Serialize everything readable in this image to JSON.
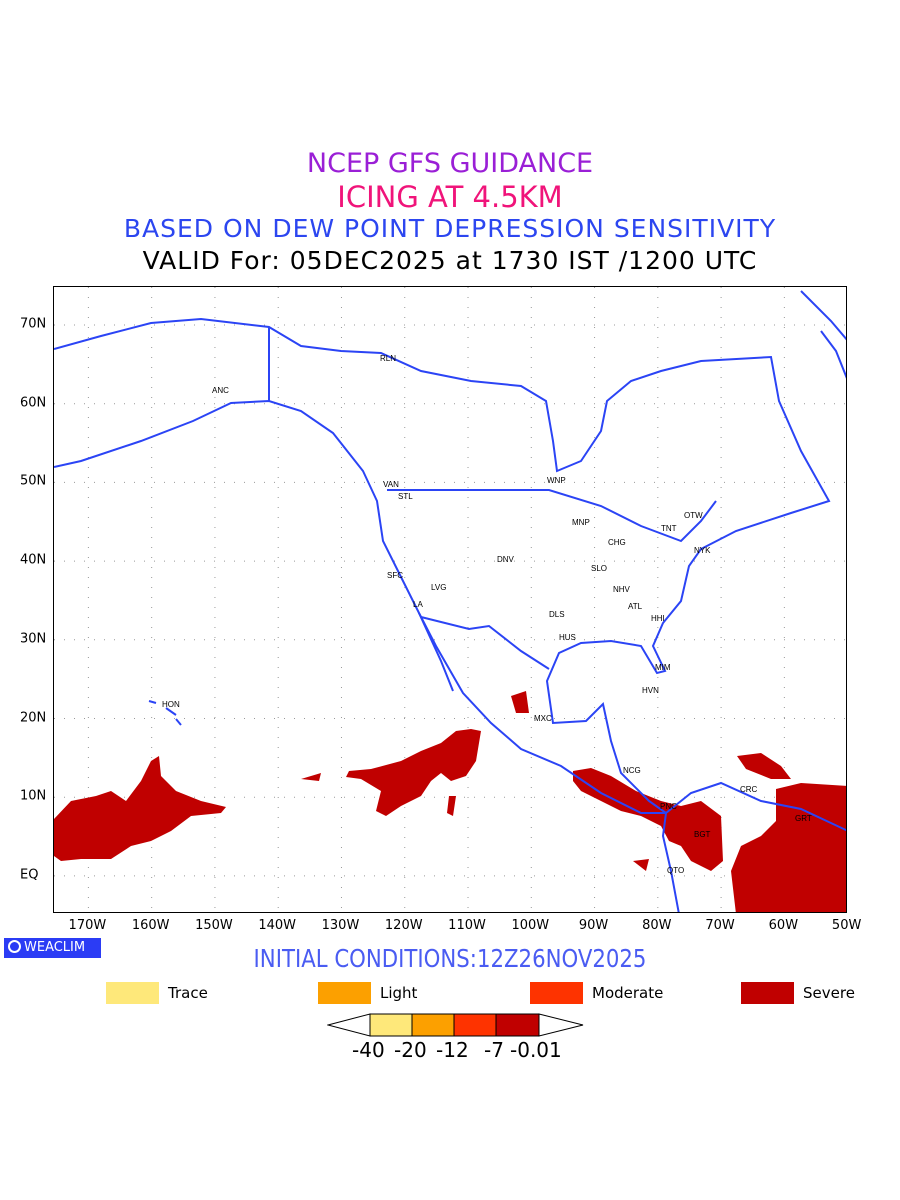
{
  "titles": {
    "line1": "NCEP GFS GUIDANCE",
    "line2": "ICING AT 4.5KM",
    "line3": "BASED ON DEW POINT DEPRESSION SENSITIVITY",
    "line4": "VALID For: 05DEC2025 at 1730 IST /1200 UTC"
  },
  "axes": {
    "x_labels": [
      "170W",
      "160W",
      "150W",
      "140W",
      "130W",
      "120W",
      "110W",
      "100W",
      "90W",
      "80W",
      "70W",
      "60W",
      "50W"
    ],
    "y_labels": [
      "70N",
      "60N",
      "50N",
      "40N",
      "30N",
      "20N",
      "10N",
      "EQ"
    ]
  },
  "cities": [
    "RLN",
    "ANC",
    "VAN",
    "STL",
    "WNP",
    "MNP",
    "OTW",
    "TNT",
    "CHG",
    "NYK",
    "DNV",
    "SFC",
    "SLO",
    "LVG",
    "NHV",
    "LA",
    "ATL",
    "DLS",
    "HHI",
    "HUS",
    "MIM",
    "HVN",
    "HON",
    "MXC",
    "NCG",
    "CRC",
    "PNC",
    "GRT",
    "BGT",
    "QTO"
  ],
  "logo": "WEACLIM",
  "initial_conditions": "INITIAL CONDITIONS:12Z26NOV2025",
  "legend": [
    {
      "label": "Trace",
      "color": "#fee87a"
    },
    {
      "label": "Light",
      "color": "#fca000"
    },
    {
      "label": "Moderate",
      "color": "#fe3300"
    },
    {
      "label": "Severe",
      "color": "#c00000"
    }
  ],
  "colorbar_labels": [
    "-40",
    "-20",
    "-12",
    "-7",
    "-0.01"
  ],
  "colors": {
    "coast": "#2b44f5",
    "icing": "#c00000"
  }
}
